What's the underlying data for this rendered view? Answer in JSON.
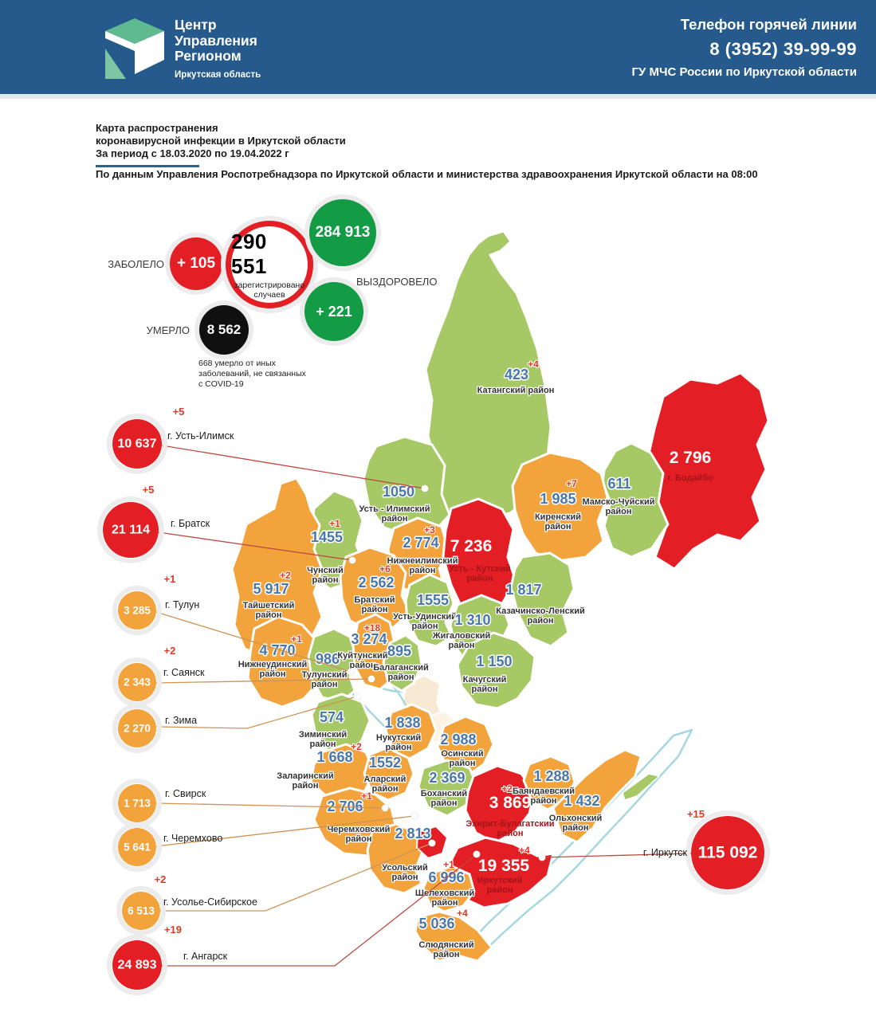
{
  "header": {
    "org_line1": "Центр",
    "org_line2": "Управления",
    "org_line3": "Регионом",
    "org_region": "Иркутская область",
    "hotline_title": "Телефон горячей линии",
    "hotline_phone": "8 (3952) 39-99-99",
    "hotline_org": "ГУ МЧС России по Иркутской области"
  },
  "title": {
    "line1": "Карта распространения",
    "line2": "коронавирусной инфекции в Иркутской области",
    "line3": "За период с 18.03.2020 по 19.04.2022 г",
    "source": "По данным Управления Роспотребнадзора по Иркутской области и министерства здравоохранения Иркутской области на 08:00"
  },
  "stats": {
    "sick_label": "ЗАБОЛЕЛО",
    "sick_delta": "+ 105",
    "total_value": "290 551",
    "total_caption1": "зарегистрировано",
    "total_caption2": "случаев",
    "recovered_value": "284 913",
    "recovered_label": "ВЫЗДОРОВЕЛО",
    "recovered_delta": "+ 221",
    "died_label": "УМЕРЛО",
    "died_value": "8 562",
    "died_note": "668 умерло от иных\nзаболеваний, не связанных\nс COVID-19"
  },
  "colors": {
    "green": "#A6C965",
    "orange": "#F2A33C",
    "red": "#E31E24",
    "number_blue": "#4877A8",
    "delta_red": "#DD3B27",
    "red_label": "#A3151B",
    "name_dark": "#333333",
    "line_red": "#BF4A42",
    "line_orange": "#CE9355",
    "coast": "#A6D8DD",
    "header_blue": "#26598C"
  },
  "districts": [
    {
      "id": "katangsky",
      "name": "Катангский район",
      "value": "423",
      "delta": "+4",
      "level": "green"
    },
    {
      "id": "bodaibo",
      "name": "г. Бодайбо",
      "value": "2 796",
      "level": "red"
    },
    {
      "id": "mamsko",
      "name": "Мамско-Чуйский\nрайон",
      "value": "611",
      "level": "green"
    },
    {
      "id": "kirensky",
      "name": "Киренский\nрайон",
      "value": "1 985",
      "delta": "+7",
      "level": "orange"
    },
    {
      "id": "ust_ilimsky",
      "name": "Усть - Илимский\nрайон",
      "value": "1050",
      "level": "green"
    },
    {
      "id": "nizhneilimsky",
      "name": "Нижнеилимский\nрайон",
      "value": "2 774",
      "delta": "+3",
      "level": "orange"
    },
    {
      "id": "ust_kutsky",
      "name": "Усть - Кутский\nрайон",
      "value": "7 236",
      "level": "red"
    },
    {
      "id": "kazachinsko",
      "name": "Казачинско-Ленский\nрайон",
      "value": "1 817",
      "level": "green"
    },
    {
      "id": "chunsky",
      "name": "Чунский\nрайон",
      "value": "1455",
      "delta": "+1",
      "level": "green"
    },
    {
      "id": "taishetsky",
      "name": "Тайшетский\nрайон",
      "value": "5 917",
      "delta": "+2",
      "level": "orange"
    },
    {
      "id": "bratsky",
      "name": "Братский\nрайон",
      "value": "2 562",
      "delta": "+6",
      "level": "orange"
    },
    {
      "id": "ust_udinsky",
      "name": "Усть-Удинский\nрайон",
      "value": "1555",
      "level": "green"
    },
    {
      "id": "zhigalovsky",
      "name": "Жигаловский\nрайон",
      "value": "1 310",
      "level": "green"
    },
    {
      "id": "kachugsky",
      "name": "Качугский\nрайон",
      "value": "1 150",
      "level": "green"
    },
    {
      "id": "nizhneudinsky",
      "name": "Нижнеудинский\nрайон",
      "value": "4 770",
      "delta": "+1",
      "level": "orange"
    },
    {
      "id": "tulunsky",
      "name": "Тулунский\nрайон",
      "value": "986",
      "level": "green"
    },
    {
      "id": "kuitunsky",
      "name": "Куйтунский\nрайон",
      "value": "3 274",
      "delta": "+18",
      "level": "orange"
    },
    {
      "id": "balagansky",
      "name": "Балаганский\nрайон",
      "value": "895",
      "level": "green"
    },
    {
      "id": "ziminsky",
      "name": "Зиминский\nрайон",
      "value": "574",
      "level": "green"
    },
    {
      "id": "zalarinsky",
      "name": "Заларинский\nрайон",
      "value": "1 668",
      "delta": "+2",
      "level": "orange"
    },
    {
      "id": "alarsky",
      "name": "Аларский\nрайон",
      "value": "1552",
      "level": "orange"
    },
    {
      "id": "nukutsky",
      "name": "Нукутский\nрайон",
      "value": "1 838",
      "level": "orange"
    },
    {
      "id": "osinsky",
      "name": "Осинский\nрайон",
      "value": "2 988",
      "level": "orange"
    },
    {
      "id": "bokhansky",
      "name": "Боханский\nрайон",
      "value": "2 369",
      "level": "green"
    },
    {
      "id": "cheremkhovsky",
      "name": "Черемховский\nрайон",
      "value": "2 706",
      "delta": "+1",
      "level": "orange"
    },
    {
      "id": "usolsky",
      "name": "Усольский\nрайон",
      "value": "2 813",
      "level": "orange"
    },
    {
      "id": "ekhirit",
      "name": "Эхирит-Булагатский\nрайон",
      "value": "3 869",
      "delta": "+2",
      "level": "red"
    },
    {
      "id": "bayandaevsky",
      "name": "Баяндаевский\nрайон",
      "value": "1 288",
      "level": "orange"
    },
    {
      "id": "olkhonsky",
      "name": "Ольхонский\nрайон",
      "value": "1 432",
      "level": "orange"
    },
    {
      "id": "irkutsky",
      "name": "Иркутский\nрайон",
      "value": "19 355",
      "delta": "+4",
      "level": "red"
    },
    {
      "id": "shelekhovsky",
      "name": "Шелеховский\nрайон",
      "value": "6 996",
      "delta": "+1",
      "level": "orange"
    },
    {
      "id": "slyudyansky",
      "name": "Слюдянский\nрайон",
      "value": "5 036",
      "delta": "+4",
      "level": "orange"
    }
  ],
  "cities": [
    {
      "id": "ust_ilimsk",
      "name": "г. Усть-Илимск",
      "value": "10 637",
      "delta": "+5",
      "level": "red"
    },
    {
      "id": "bratsk",
      "name": "г. Братск",
      "value": "21 114",
      "delta": "+5",
      "level": "red"
    },
    {
      "id": "tulun",
      "name": "г. Тулун",
      "value": "3 285",
      "delta": "+1",
      "level": "orange"
    },
    {
      "id": "sayansk",
      "name": "г. Саянск",
      "value": "2 343",
      "delta": "+2",
      "level": "orange"
    },
    {
      "id": "zima",
      "name": "г. Зима",
      "value": "2 270",
      "level": "orange"
    },
    {
      "id": "svirsk",
      "name": "г. Свирск",
      "value": "1 713",
      "level": "orange"
    },
    {
      "id": "cheremkhovo",
      "name": "г. Черемхово",
      "value": "5 641",
      "level": "orange"
    },
    {
      "id": "usolye",
      "name": "г. Усолье-Сибирское",
      "value": "6 513",
      "delta": "+2",
      "level": "orange"
    },
    {
      "id": "angarsk",
      "name": "г. Ангарск",
      "value": "24 893",
      "delta": "+19",
      "level": "red"
    },
    {
      "id": "irkutsk",
      "name": "г. Иркутск",
      "value": "115 092",
      "delta": "+15",
      "level": "red"
    }
  ]
}
